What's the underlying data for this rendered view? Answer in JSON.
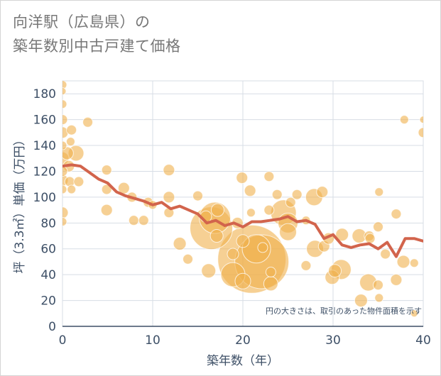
{
  "chart_data": {
    "type": "scatter",
    "title_lines": [
      "向洋駅（広島県）の",
      "築年数別中古戸建て価格"
    ],
    "xlabel": "築年数（年）",
    "ylabel": "坪（3.3㎡）単価（万円）",
    "xlim": [
      0,
      40
    ],
    "ylim": [
      0,
      190
    ],
    "xticks": [
      0,
      10,
      20,
      30,
      40
    ],
    "yticks": [
      0,
      20,
      40,
      60,
      80,
      100,
      120,
      140,
      160,
      180
    ],
    "grid": true,
    "note": "円の大きさは、取引のあった物件面積を示す",
    "colors": {
      "bubble": "#f0b14c",
      "line": "#d2644c",
      "grid": "#d7dde5",
      "axis": "#3d4f66"
    },
    "points": [
      {
        "x": 0,
        "y": 187,
        "size": 6
      },
      {
        "x": 0,
        "y": 182,
        "size": 5
      },
      {
        "x": 0,
        "y": 172,
        "size": 6
      },
      {
        "x": 0,
        "y": 160,
        "size": 7
      },
      {
        "x": 0,
        "y": 150,
        "size": 8
      },
      {
        "x": 0,
        "y": 140,
        "size": 6
      },
      {
        "x": 0,
        "y": 130,
        "size": 9
      },
      {
        "x": 0,
        "y": 120,
        "size": 7
      },
      {
        "x": 0,
        "y": 113,
        "size": 8
      },
      {
        "x": 0,
        "y": 106,
        "size": 6
      },
      {
        "x": 0,
        "y": 88,
        "size": 8
      },
      {
        "x": 0,
        "y": 81,
        "size": 6
      },
      {
        "x": 0.5,
        "y": 134,
        "size": 9
      },
      {
        "x": 0.7,
        "y": 124,
        "size": 8
      },
      {
        "x": 0.8,
        "y": 112,
        "size": 7
      },
      {
        "x": 0.9,
        "y": 143,
        "size": 6
      },
      {
        "x": 1,
        "y": 152,
        "size": 7
      },
      {
        "x": 1,
        "y": 106,
        "size": 6
      },
      {
        "x": 1.5,
        "y": 134,
        "size": 11
      },
      {
        "x": 1.8,
        "y": 112,
        "size": 7
      },
      {
        "x": 2.8,
        "y": 158,
        "size": 7
      },
      {
        "x": 4.9,
        "y": 121,
        "size": 7
      },
      {
        "x": 4.9,
        "y": 106,
        "size": 7
      },
      {
        "x": 4.9,
        "y": 90,
        "size": 8
      },
      {
        "x": 6.8,
        "y": 107,
        "size": 8
      },
      {
        "x": 7.7,
        "y": 100,
        "size": 7
      },
      {
        "x": 7.9,
        "y": 82,
        "size": 7
      },
      {
        "x": 9,
        "y": 82,
        "size": 7
      },
      {
        "x": 9.5,
        "y": 96,
        "size": 7
      },
      {
        "x": 10,
        "y": 94,
        "size": 6
      },
      {
        "x": 11.8,
        "y": 121,
        "size": 8
      },
      {
        "x": 11.8,
        "y": 100,
        "size": 8
      },
      {
        "x": 11.8,
        "y": 88,
        "size": 7
      },
      {
        "x": 13,
        "y": 64,
        "size": 9
      },
      {
        "x": 13.9,
        "y": 52,
        "size": 7
      },
      {
        "x": 15,
        "y": 101,
        "size": 7
      },
      {
        "x": 15.9,
        "y": 85,
        "size": 8
      },
      {
        "x": 16.2,
        "y": 43,
        "size": 10
      },
      {
        "x": 16.5,
        "y": 76,
        "size": 30
      },
      {
        "x": 16.9,
        "y": 84,
        "size": 22
      },
      {
        "x": 17.1,
        "y": 70,
        "size": 9
      },
      {
        "x": 17.2,
        "y": 90,
        "size": 9
      },
      {
        "x": 18.9,
        "y": 56,
        "size": 8
      },
      {
        "x": 18.9,
        "y": 40,
        "size": 17
      },
      {
        "x": 19.4,
        "y": 80,
        "size": 8
      },
      {
        "x": 19.9,
        "y": 115,
        "size": 8
      },
      {
        "x": 20,
        "y": 66,
        "size": 9
      },
      {
        "x": 20,
        "y": 35,
        "size": 11
      },
      {
        "x": 20.8,
        "y": 105,
        "size": 8
      },
      {
        "x": 20.9,
        "y": 88,
        "size": 6
      },
      {
        "x": 21,
        "y": 52,
        "size": 48
      },
      {
        "x": 21.5,
        "y": 60,
        "size": 20
      },
      {
        "x": 22.1,
        "y": 50,
        "size": 38
      },
      {
        "x": 22.2,
        "y": 61,
        "size": 7
      },
      {
        "x": 22.9,
        "y": 116,
        "size": 7
      },
      {
        "x": 22.9,
        "y": 90,
        "size": 7
      },
      {
        "x": 23.1,
        "y": 42,
        "size": 7
      },
      {
        "x": 23.1,
        "y": 33,
        "size": 10
      },
      {
        "x": 23.8,
        "y": 102,
        "size": 7
      },
      {
        "x": 24.5,
        "y": 88,
        "size": 18
      },
      {
        "x": 25,
        "y": 80,
        "size": 14
      },
      {
        "x": 25,
        "y": 73,
        "size": 12
      },
      {
        "x": 25.3,
        "y": 96,
        "size": 7
      },
      {
        "x": 26,
        "y": 102,
        "size": 7
      },
      {
        "x": 27,
        "y": 47,
        "size": 7
      },
      {
        "x": 27,
        "y": 82,
        "size": 6
      },
      {
        "x": 27.9,
        "y": 100,
        "size": 12
      },
      {
        "x": 28,
        "y": 60,
        "size": 12
      },
      {
        "x": 28.8,
        "y": 104,
        "size": 8
      },
      {
        "x": 29,
        "y": 62,
        "size": 8
      },
      {
        "x": 29.5,
        "y": 68,
        "size": 8
      },
      {
        "x": 29.9,
        "y": 38,
        "size": 10
      },
      {
        "x": 30.2,
        "y": 43,
        "size": 9
      },
      {
        "x": 30.9,
        "y": 44,
        "size": 14
      },
      {
        "x": 31,
        "y": 71,
        "size": 9
      },
      {
        "x": 32.9,
        "y": 70,
        "size": 10
      },
      {
        "x": 33.1,
        "y": 20,
        "size": 9
      },
      {
        "x": 33.9,
        "y": 34,
        "size": 12
      },
      {
        "x": 34,
        "y": 70,
        "size": 7
      },
      {
        "x": 34.1,
        "y": 68,
        "size": 7
      },
      {
        "x": 35,
        "y": 32,
        "size": 7
      },
      {
        "x": 35,
        "y": 77,
        "size": 7
      },
      {
        "x": 35.1,
        "y": 22,
        "size": 6
      },
      {
        "x": 35.1,
        "y": 104,
        "size": 6
      },
      {
        "x": 35.8,
        "y": 56,
        "size": 7
      },
      {
        "x": 37,
        "y": 36,
        "size": 8
      },
      {
        "x": 37,
        "y": 87,
        "size": 7
      },
      {
        "x": 37.8,
        "y": 50,
        "size": 9
      },
      {
        "x": 37.9,
        "y": 160,
        "size": 6
      },
      {
        "x": 39,
        "y": 10,
        "size": 5
      },
      {
        "x": 39,
        "y": 49,
        "size": 6
      },
      {
        "x": 40,
        "y": 150,
        "size": 7
      },
      {
        "x": 40,
        "y": 160,
        "size": 5
      }
    ],
    "trend": {
      "x": [
        0,
        1,
        2,
        3,
        4,
        5,
        6,
        7,
        8,
        9,
        10,
        11,
        12,
        13,
        14,
        15,
        16,
        17,
        18,
        19,
        20,
        21,
        22,
        23,
        24,
        25,
        26,
        27,
        28,
        29,
        30,
        31,
        32,
        33,
        34,
        35,
        36,
        37,
        38,
        39,
        40
      ],
      "y": [
        124,
        125,
        124,
        119,
        114,
        111,
        104,
        101,
        99,
        97,
        94,
        96,
        91,
        93,
        90,
        87,
        80,
        82,
        78,
        80,
        77,
        81,
        81,
        82,
        83,
        85,
        81,
        82,
        79,
        68,
        71,
        63,
        61,
        63,
        64,
        60,
        65,
        54,
        68,
        68,
        66
      ]
    }
  }
}
